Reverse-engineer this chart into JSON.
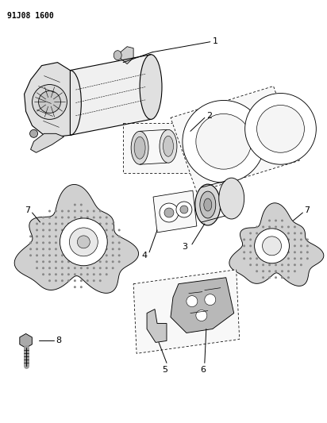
{
  "title": "91J08 1600",
  "background_color": "#ffffff",
  "line_color": "#000000",
  "fig_width": 4.12,
  "fig_height": 5.33,
  "dpi": 100
}
